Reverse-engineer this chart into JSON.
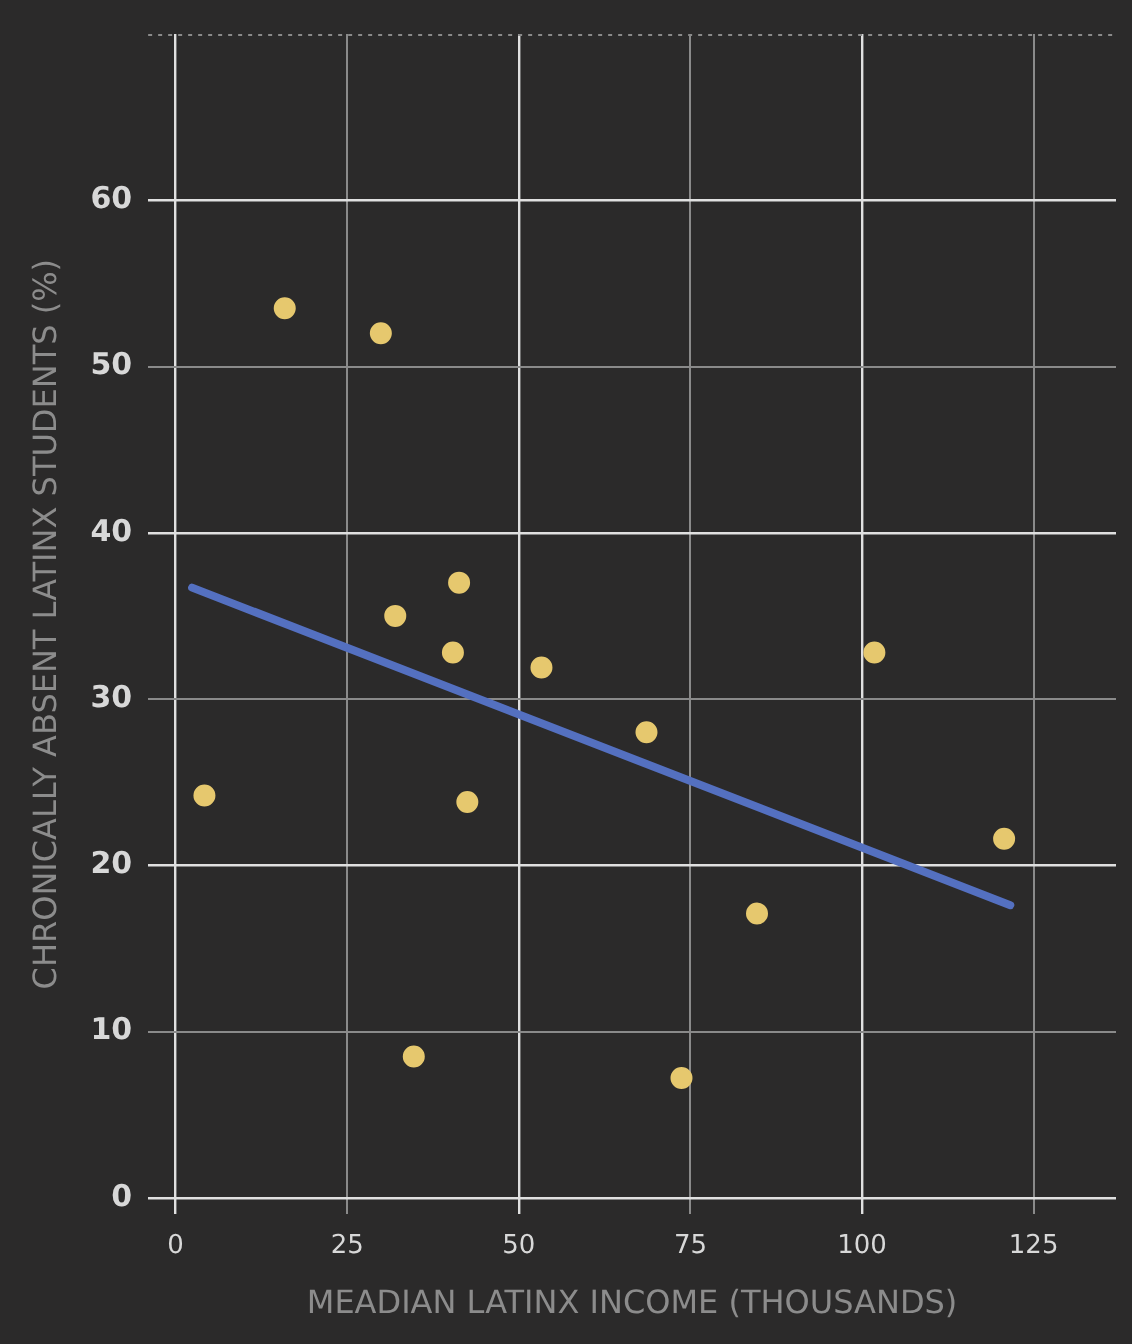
{
  "chart_data": {
    "type": "scatter",
    "xlabel": "MEADIAN LATINX INCOME (THOUSANDS)",
    "ylabel": "CHRONICALLY ABSENT LATINX STUDENTS (%)",
    "xlim": [
      -4,
      137
    ],
    "ylim": [
      -1,
      70
    ],
    "xticks": [
      0,
      25,
      50,
      75,
      100,
      125
    ],
    "yticks": [
      0,
      10,
      20,
      30,
      40,
      50,
      60
    ],
    "grid": true,
    "legend": false,
    "series": [
      {
        "marker": "circle",
        "color": "#e6c86e",
        "x": [
          4.2,
          15.9,
          29.9,
          32.0,
          34.7,
          40.4,
          41.3,
          42.5,
          53.3,
          68.6,
          73.7,
          84.7,
          101.8,
          120.7
        ],
        "values": [
          24.2,
          53.5,
          52.0,
          35.0,
          8.5,
          32.8,
          37.0,
          23.8,
          31.9,
          28.0,
          7.2,
          17.1,
          32.8,
          21.6
        ]
      },
      {
        "type": "line",
        "marker": "none",
        "color": "#5470c0",
        "x": [
          2.4,
          121.6
        ],
        "values": [
          36.7,
          17.6
        ]
      }
    ]
  }
}
